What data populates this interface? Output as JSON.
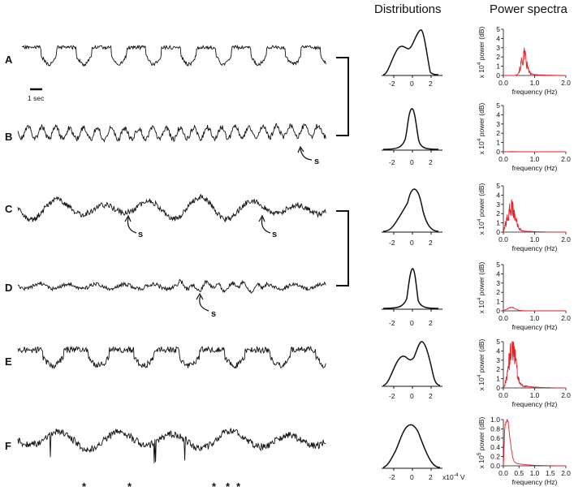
{
  "headers": {
    "distributions": "Distributions",
    "power_spectra": "Power spectra"
  },
  "scale_bar_label": "1 sec",
  "annotation_label": "s",
  "asterisk": "*",
  "dist_unit_label": "x10",
  "dist_unit_exp": "-4",
  "dist_unit_suffix": " V",
  "rows": [
    {
      "label": "A",
      "dist_ticks": [
        "-2",
        "0",
        "2"
      ],
      "ps_yticks": [
        "5",
        "4",
        "3",
        "2",
        "1",
        "0"
      ],
      "ps_mult": "x 10",
      "ps_exp": "4",
      "ps_ylabel": "power (dB)",
      "ps_xticks": [
        "0.0",
        "1.0",
        "2.0"
      ],
      "ps_xlabel": "frequency (Hz)",
      "annotations": []
    },
    {
      "label": "B",
      "dist_ticks": [
        "-2",
        "0",
        "2"
      ],
      "ps_yticks": [
        "5",
        "4",
        "3",
        "2",
        "1",
        "0"
      ],
      "ps_mult": "x 10",
      "ps_exp": "4",
      "ps_ylabel": "power (dB)",
      "ps_xticks": [
        "0.0",
        "1.0",
        "2.0"
      ],
      "ps_xlabel": "frequency (Hz)",
      "annotations": [
        "s"
      ]
    },
    {
      "label": "C",
      "dist_ticks": [
        "-2",
        "0",
        "2"
      ],
      "ps_yticks": [
        "5",
        "4",
        "3",
        "2",
        "1",
        "0"
      ],
      "ps_mult": "x 10",
      "ps_exp": "4",
      "ps_ylabel": "power (dB)",
      "ps_xticks": [
        "0.0",
        "1.0",
        "2.0"
      ],
      "ps_xlabel": "frequency (Hz)",
      "annotations": [
        "s",
        "s"
      ]
    },
    {
      "label": "D",
      "dist_ticks": [
        "-2",
        "0",
        "2"
      ],
      "ps_yticks": [
        "5",
        "4",
        "3",
        "2",
        "1",
        "0"
      ],
      "ps_mult": "x 10",
      "ps_exp": "4",
      "ps_ylabel": "power (dB)",
      "ps_xticks": [
        "0.0",
        "1.0",
        "2.0"
      ],
      "ps_xlabel": "frequency (Hz)",
      "annotations": [
        "s"
      ]
    },
    {
      "label": "E",
      "dist_ticks": [
        "-2",
        "0",
        "2"
      ],
      "ps_yticks": [
        "5",
        "4",
        "3",
        "2",
        "1",
        "0"
      ],
      "ps_mult": "x 10",
      "ps_exp": "4",
      "ps_ylabel": "power (dB)",
      "ps_xticks": [
        "0.0",
        "1.0",
        "2.0"
      ],
      "ps_xlabel": "frequency (Hz)",
      "annotations": []
    },
    {
      "label": "F",
      "dist_ticks": [
        "-2",
        "0",
        "2"
      ],
      "ps_yticks": [
        "1.0",
        "0.8",
        "0.6",
        "0.4",
        "0.2",
        "0.0"
      ],
      "ps_mult": "x 10",
      "ps_exp": "5",
      "ps_ylabel": "power (dB)",
      "ps_xticks": [
        "0.0",
        "0.5",
        "1.0",
        "1.5",
        "2.0"
      ],
      "ps_xlabel": "frequency (Hz)",
      "annotations": []
    }
  ],
  "colors": {
    "trace": "#111111",
    "spectrum": "#e8202a",
    "axis": "#111111"
  }
}
